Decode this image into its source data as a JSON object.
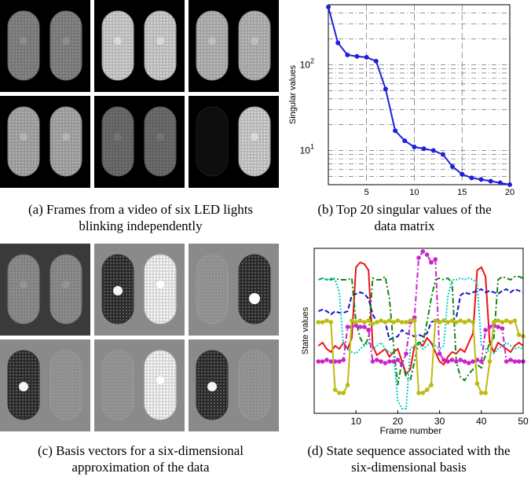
{
  "figure": {
    "panel_a": {
      "caption_line1": "(a) Frames from a video of six LED lights",
      "caption_line2": "blinking independently"
    },
    "panel_b": {
      "caption_line1": "(b) Top 20 singular values of the",
      "caption_line2": "data matrix"
    },
    "panel_c": {
      "caption_line1": "(c) Basis vectors for a six-dimensional",
      "caption_line2": "approximation of the data"
    },
    "panel_d": {
      "caption_line1": "(d) State sequence associated with the",
      "caption_line2": "six-dimensional basis"
    }
  },
  "chart_data": [
    {
      "type": "line",
      "scale": "log-y",
      "grid": true,
      "ylabel": "Singular values",
      "xlabel": "",
      "xlim": [
        1,
        20
      ],
      "ylim": [
        4,
        500
      ],
      "x_ticks": [
        "5",
        "10",
        "15",
        "20"
      ],
      "y_ticks": [
        "10^1",
        "10^2"
      ],
      "y_tick_base": "10",
      "y_tick_exponents": [
        "1",
        "2"
      ],
      "color": "#1f1fdd",
      "x": [
        1,
        2,
        3,
        4,
        5,
        6,
        7,
        8,
        9,
        10,
        11,
        12,
        13,
        14,
        15,
        16,
        17,
        18,
        19,
        20
      ],
      "values": [
        470,
        180,
        130,
        125,
        122,
        110,
        52,
        17,
        13,
        11,
        10.5,
        10,
        9,
        6.5,
        5.3,
        4.8,
        4.6,
        4.4,
        4.2,
        4.0
      ]
    },
    {
      "type": "line",
      "grid": false,
      "xlabel": "Frame number",
      "ylabel": "State values",
      "xlim": [
        0,
        50
      ],
      "x_ticks": [
        "10",
        "20",
        "30",
        "40",
        "50"
      ],
      "series_count": 6,
      "series": [
        {
          "color": "#ee1111",
          "style": "solid",
          "values": [
            0.4,
            0.42,
            0.38,
            0.36,
            0.4,
            0.38,
            0.42,
            0.38,
            0.45,
            0.9,
            0.93,
            0.92,
            0.88,
            0.4,
            0.34,
            0.36,
            0.38,
            0.33,
            0.36,
            0.38,
            0.3,
            0.22,
            0.25,
            0.4,
            0.42,
            0.4,
            0.45,
            0.42,
            0.36,
            0.3,
            0.28,
            0.33,
            0.36,
            0.35,
            0.38,
            0.36,
            0.42,
            0.48,
            0.88,
            0.9,
            0.84,
            0.42,
            0.36,
            0.42,
            0.4,
            0.38,
            0.36,
            0.4,
            0.42,
            0.4
          ]
        },
        {
          "color": "#1111cc",
          "style": "dashed",
          "values": [
            0.62,
            0.63,
            0.62,
            0.6,
            0.62,
            0.61,
            0.61,
            0.62,
            0.72,
            0.73,
            0.74,
            0.73,
            0.7,
            0.6,
            0.55,
            0.56,
            0.55,
            0.44,
            0.45,
            0.46,
            0.5,
            0.48,
            0.47,
            0.46,
            0.47,
            0.46,
            0.48,
            0.55,
            0.56,
            0.55,
            0.56,
            0.55,
            0.56,
            0.58,
            0.72,
            0.74,
            0.73,
            0.74,
            0.75,
            0.76,
            0.74,
            0.75,
            0.74,
            0.73,
            0.75,
            0.76,
            0.74,
            0.76,
            0.75,
            0.74
          ]
        },
        {
          "color": "#118811",
          "style": "dashdot",
          "values": [
            0.82,
            0.83,
            0.82,
            0.82,
            0.83,
            0.82,
            0.82,
            0.82,
            0.83,
            0.55,
            0.45,
            0.4,
            0.45,
            0.83,
            0.82,
            0.82,
            0.84,
            0.7,
            0.4,
            0.15,
            0.3,
            0.2,
            0.18,
            0.3,
            0.42,
            0.42,
            0.55,
            0.7,
            0.82,
            0.83,
            0.82,
            0.83,
            0.8,
            0.3,
            0.2,
            0.18,
            0.22,
            0.25,
            0.28,
            0.26,
            0.34,
            0.42,
            0.45,
            0.82,
            0.84,
            0.83,
            0.82,
            0.84,
            0.84,
            0.83
          ]
        },
        {
          "color": "#00cccc",
          "style": "dotted",
          "values": [
            0.82,
            0.83,
            0.82,
            0.83,
            0.82,
            0.74,
            0.4,
            0.38,
            0.36,
            0.35,
            0.38,
            0.4,
            0.42,
            0.38,
            0.4,
            0.42,
            0.38,
            0.36,
            0.35,
            0.05,
            0.0,
            0.0,
            0.38,
            0.4,
            0.42,
            0.38,
            0.4,
            0.42,
            0.4,
            0.38,
            0.4,
            0.72,
            0.82,
            0.82,
            0.83,
            0.82,
            0.83,
            0.82,
            0.8,
            0.4,
            0.38,
            0.36,
            0.35,
            0.38,
            0.4,
            0.42,
            0.4,
            0.38,
            0.39,
            0.38
          ]
        },
        {
          "color": "#cc22cc",
          "style": "dashdot",
          "markers": true,
          "values": [
            0.3,
            0.3,
            0.31,
            0.3,
            0.3,
            0.3,
            0.31,
            0.52,
            0.52,
            0.53,
            0.52,
            0.52,
            0.5,
            0.3,
            0.31,
            0.3,
            0.29,
            0.3,
            0.3,
            0.31,
            0.28,
            0.35,
            0.55,
            0.58,
            0.96,
            1.0,
            0.98,
            0.93,
            0.95,
            0.35,
            0.31,
            0.3,
            0.31,
            0.3,
            0.31,
            0.3,
            0.29,
            0.3,
            0.31,
            0.3,
            0.5,
            0.52,
            0.53,
            0.52,
            0.51,
            0.3,
            0.31,
            0.3,
            0.3,
            0.3
          ]
        },
        {
          "color": "#bbbb11",
          "style": "solid",
          "markers": true,
          "values": [
            0.55,
            0.55,
            0.56,
            0.55,
            0.12,
            0.1,
            0.1,
            0.15,
            0.56,
            0.55,
            0.56,
            0.55,
            0.56,
            0.54,
            0.55,
            0.56,
            0.55,
            0.56,
            0.55,
            0.56,
            0.55,
            0.55,
            0.56,
            0.56,
            0.1,
            0.1,
            0.12,
            0.15,
            0.56,
            0.55,
            0.56,
            0.55,
            0.56,
            0.55,
            0.56,
            0.55,
            0.56,
            0.55,
            0.16,
            0.1,
            0.1,
            0.3,
            0.55,
            0.56,
            0.55,
            0.56,
            0.55,
            0.56,
            0.47,
            0.46
          ]
        }
      ]
    }
  ]
}
